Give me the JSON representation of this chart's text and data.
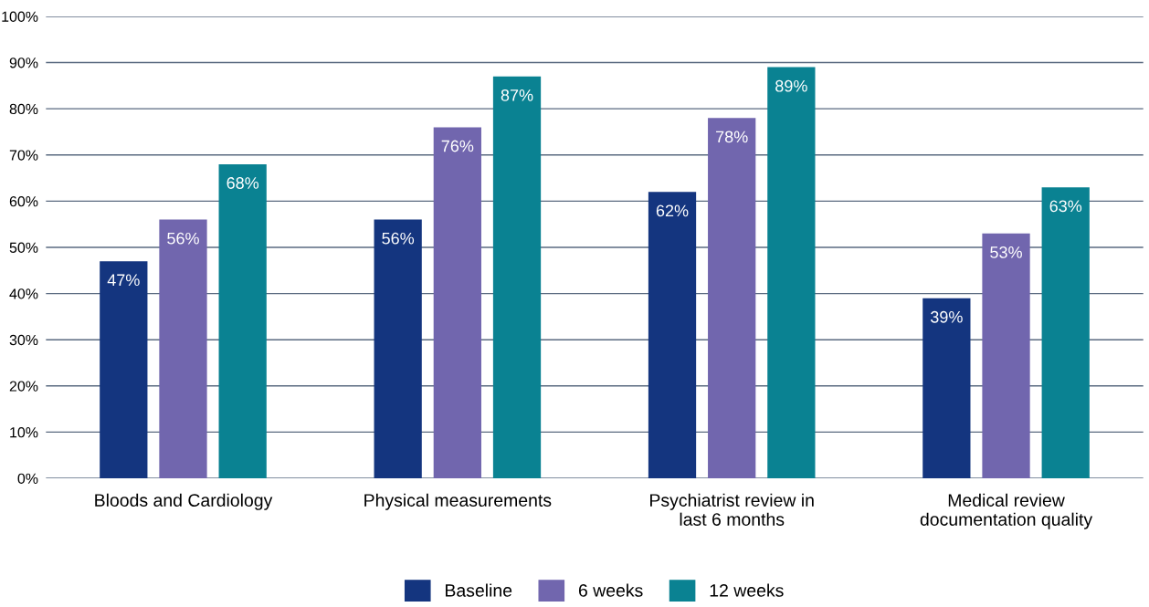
{
  "chart_data": {
    "type": "bar",
    "categories": [
      "Bloods and Cardiology",
      "Physical measurements",
      "Psychiatrist review in\nlast 6 months",
      "Medical review\ndocumentation quality"
    ],
    "series": [
      {
        "name": "Baseline",
        "color": "#14357f",
        "values": [
          47,
          56,
          62,
          39
        ],
        "value_labels": [
          "47%",
          "56%",
          "62%",
          "39%"
        ]
      },
      {
        "name": "6 weeks",
        "color": "#7166ae",
        "values": [
          56,
          76,
          78,
          53
        ],
        "value_labels": [
          "56%",
          "76%",
          "78%",
          "53%"
        ]
      },
      {
        "name": "12 weeks",
        "color": "#0a8292",
        "values": [
          68,
          87,
          89,
          63
        ],
        "value_labels": [
          "68%",
          "87%",
          "89%",
          "63%"
        ]
      }
    ],
    "ylim": [
      0,
      100
    ],
    "yticks": [
      {
        "value": 0,
        "label": "0%"
      },
      {
        "value": 10,
        "label": "10%"
      },
      {
        "value": 20,
        "label": "20%"
      },
      {
        "value": 30,
        "label": "30%"
      },
      {
        "value": 40,
        "label": "40%"
      },
      {
        "value": 50,
        "label": "50%"
      },
      {
        "value": 60,
        "label": "60%"
      },
      {
        "value": 70,
        "label": "70%"
      },
      {
        "value": 80,
        "label": "80%"
      },
      {
        "value": 90,
        "label": "90%"
      },
      {
        "value": 100,
        "label": "100%"
      }
    ],
    "grid": "y",
    "legend": "bottom"
  }
}
